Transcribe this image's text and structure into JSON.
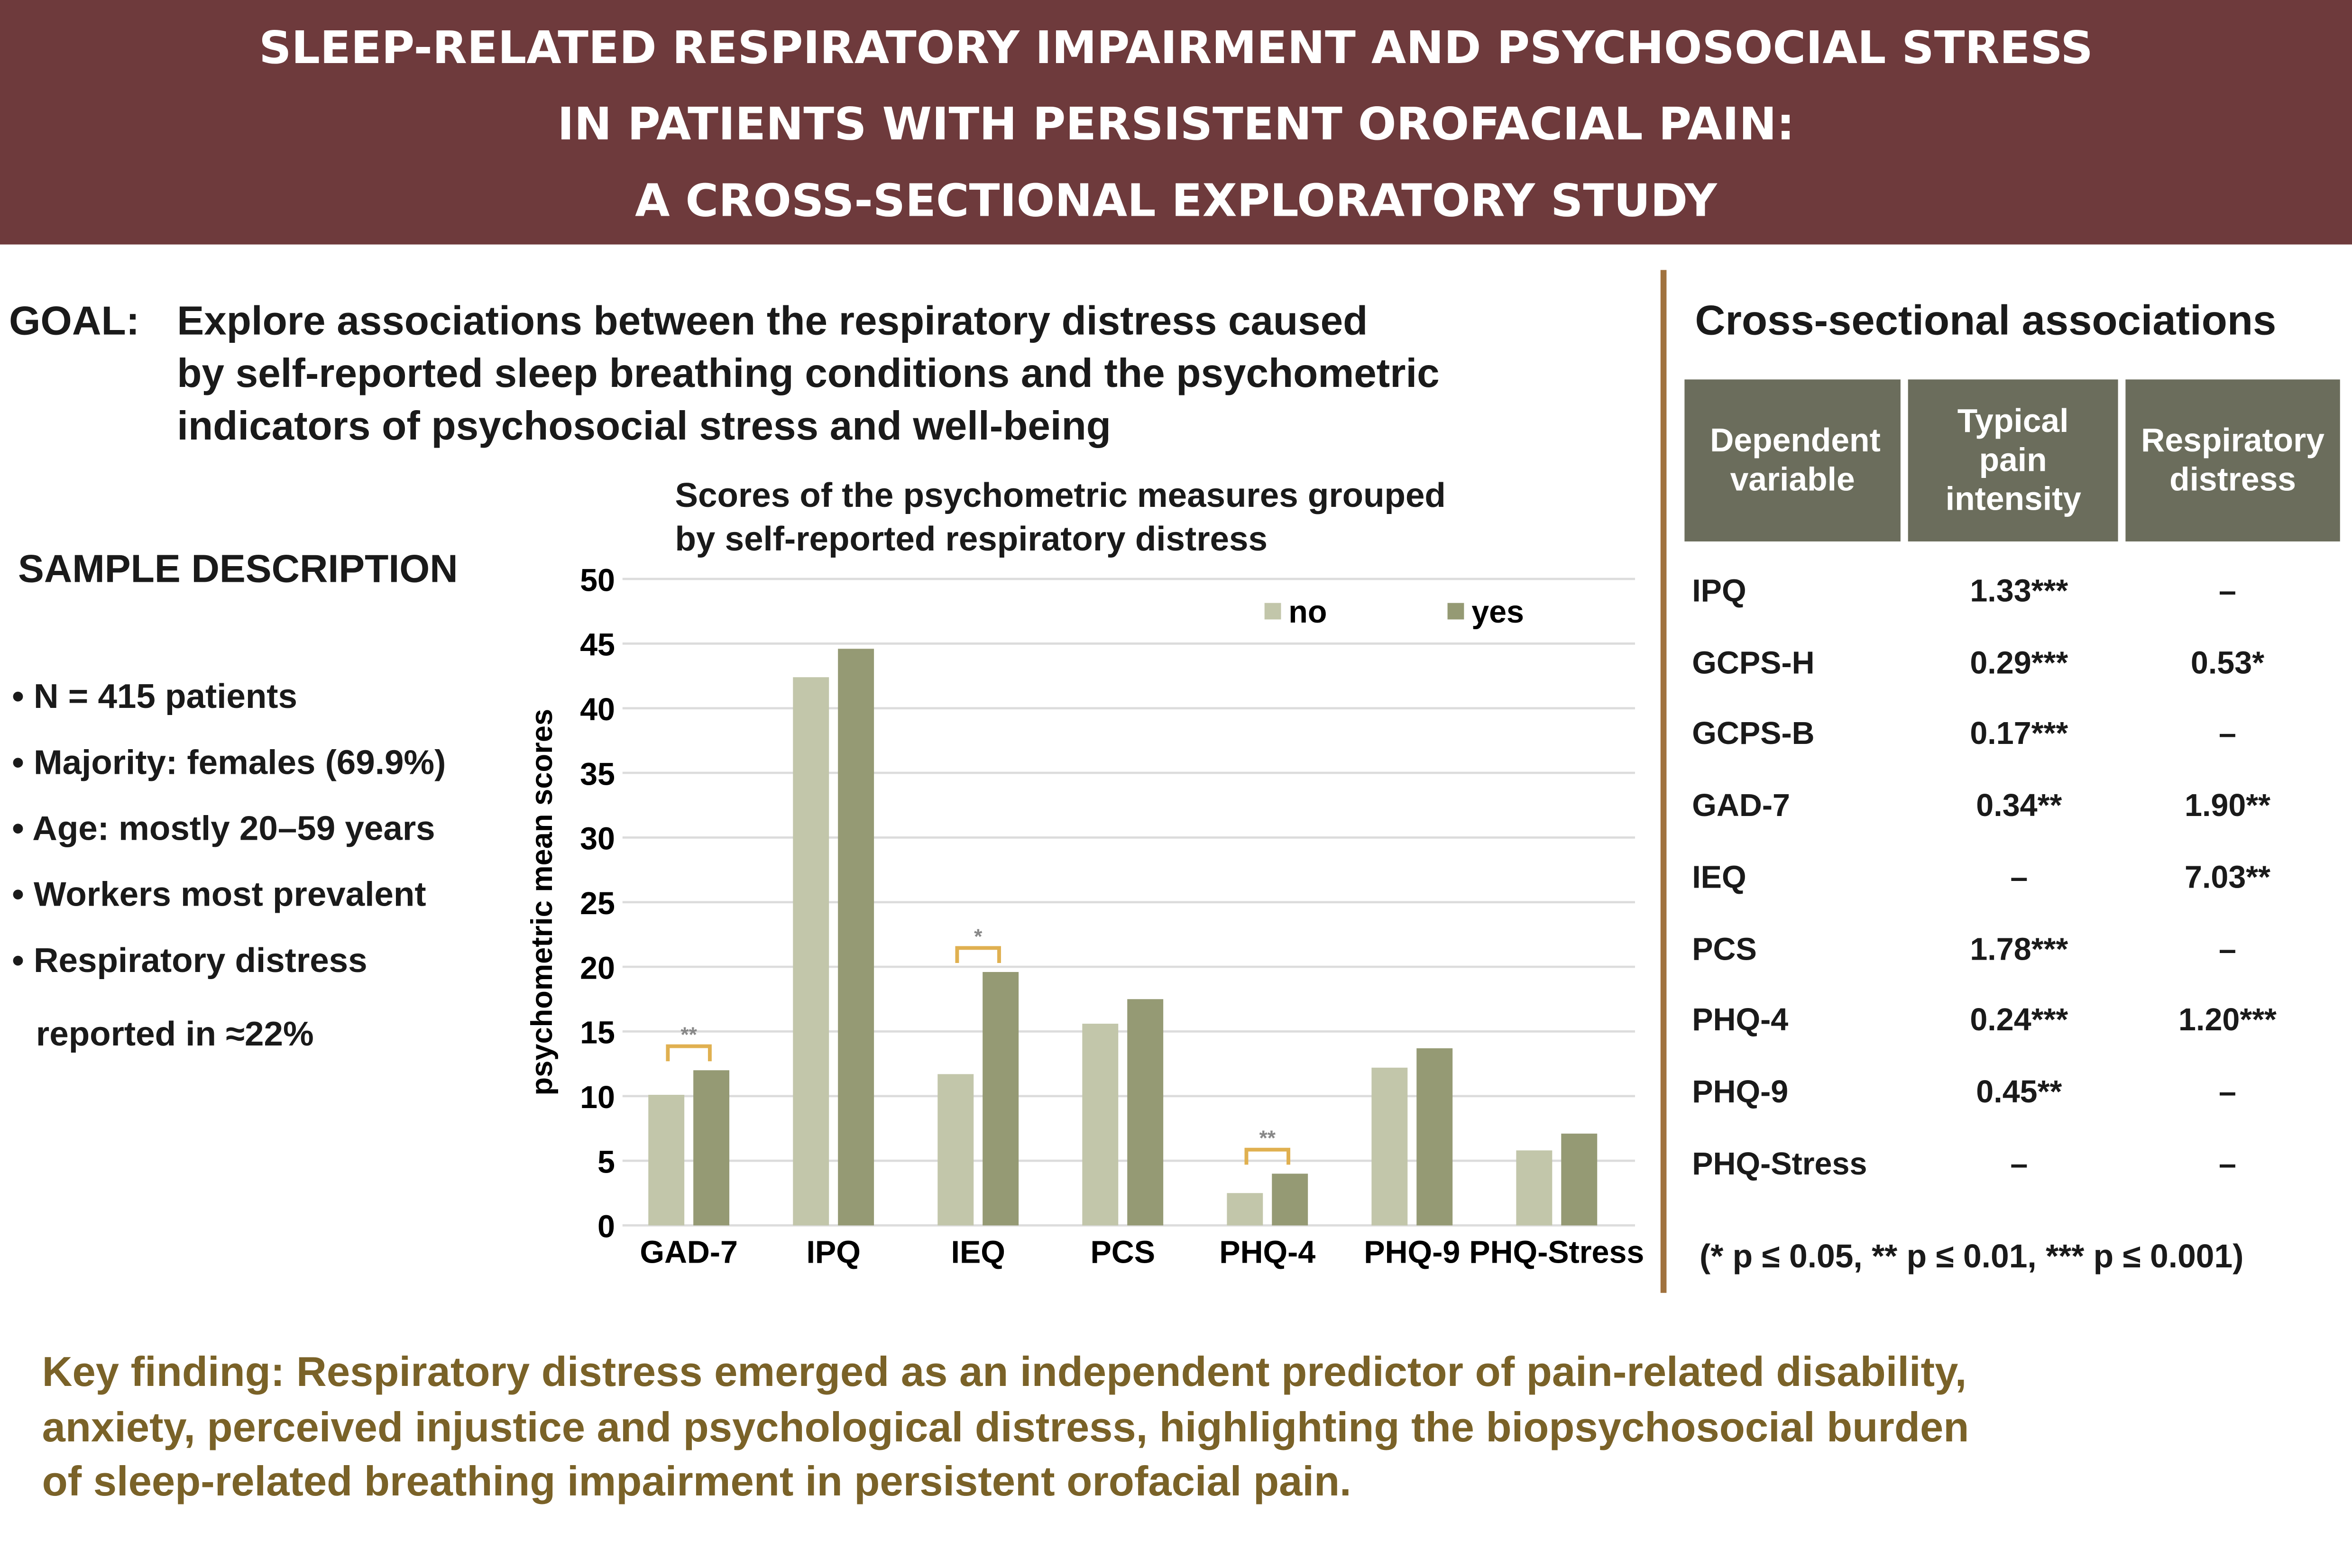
{
  "header": {
    "lines": [
      "SLEEP-RELATED RESPIRATORY IMPAIRMENT AND PSYCHOSOCIAL STRESS",
      "IN PATIENTS WITH PERSISTENT OROFACIAL PAIN:",
      "A CROSS-SECTIONAL EXPLORATORY STUDY"
    ]
  },
  "goal": {
    "label": "GOAL:",
    "lines": [
      "Explore associations between the respiratory distress caused",
      "by self-reported sleep breathing conditions and the psychometric",
      "indicators of psychosocial stress and well-being"
    ]
  },
  "sample": {
    "title": "SAMPLE DESCRIPTION",
    "items": [
      "• N = 415 patients",
      "• Majority: females (69.9%)",
      "• Age: mostly 20–59 years",
      "• Workers most prevalent",
      "• Respiratory distress",
      "reported in ≈22%"
    ]
  },
  "chart_data": {
    "type": "bar",
    "title": "Scores of the psychometric measures grouped by self-reported respiratory distress",
    "title_lines": [
      "Scores of the psychometric measures grouped",
      "by self-reported respiratory distress"
    ],
    "xlabel": "",
    "ylabel": "psychometric mean scores",
    "ylim": [
      0,
      50
    ],
    "yticks": [
      "0",
      "5",
      "10",
      "15",
      "20",
      "25",
      "30",
      "35",
      "40",
      "45",
      "50"
    ],
    "grid": true,
    "legend": "top-right",
    "categories": [
      "GAD-7",
      "IPQ",
      "IEQ",
      "PCS",
      "PHQ-4",
      "PHQ-9",
      "PHQ-Stress"
    ],
    "series": [
      {
        "name": "no",
        "color": "#c2c6aa",
        "values": [
          10.1,
          42.4,
          11.7,
          15.6,
          2.5,
          12.2,
          5.8
        ]
      },
      {
        "name": "yes",
        "color": "#959a74",
        "values": [
          12.0,
          44.6,
          19.6,
          17.5,
          4.0,
          13.7,
          7.1
        ]
      }
    ],
    "significance": [
      {
        "category": "GAD-7",
        "label": "**"
      },
      {
        "category": "IEQ",
        "label": "*"
      },
      {
        "category": "PHQ-4",
        "label": "**"
      }
    ],
    "bracket_color": "#e0b050"
  },
  "table": {
    "title": "Cross-sectional associations",
    "headers": [
      "Dependent variable",
      "Typical pain intensity",
      "Respiratory distress"
    ],
    "rows": [
      [
        "IPQ",
        "1.33***",
        "–"
      ],
      [
        "GCPS-H",
        "0.29***",
        "0.53*"
      ],
      [
        "GCPS-B",
        "0.17***",
        "–"
      ],
      [
        "GAD-7",
        "0.34**",
        "1.90**"
      ],
      [
        "IEQ",
        "–",
        "7.03**"
      ],
      [
        "PCS",
        "1.78***",
        "–"
      ],
      [
        "PHQ-4",
        "0.24***",
        "1.20***"
      ],
      [
        "PHQ-9",
        "0.45**",
        "–"
      ],
      [
        "PHQ-Stress",
        "–",
        "–"
      ]
    ],
    "note": "(* p ≤ 0.05, ** p ≤ 0.01, *** p ≤ 0.001)"
  },
  "key_finding": {
    "lines": [
      "Key finding: Respiratory distress emerged as an independent predictor of pain-related disability,",
      "anxiety, perceived injustice and psychological distress, highlighting the biopsychosocial burden",
      "of sleep-related breathing impairment in persistent orofacial pain."
    ]
  },
  "colors": {
    "header": "#6e3a3c",
    "divider": "#a0723e",
    "table_header": "#6b6d5c",
    "key_text": "#7a6228"
  }
}
